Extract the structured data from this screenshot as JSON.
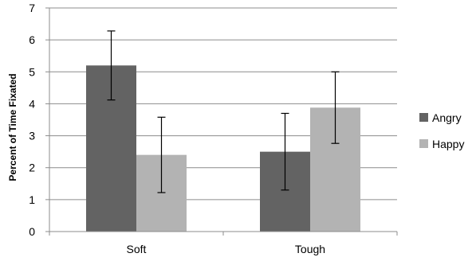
{
  "chart_data": {
    "type": "bar",
    "categories": [
      "Soft",
      "Tough"
    ],
    "series": [
      {
        "name": "Angry",
        "values": [
          5.2,
          2.5
        ],
        "error": [
          1.08,
          1.2
        ],
        "color": "#636363"
      },
      {
        "name": "Happy",
        "values": [
          2.4,
          3.88
        ],
        "error": [
          1.18,
          1.12
        ],
        "color": "#b3b3b3"
      }
    ],
    "ylabel": "Percent of Time Fixated",
    "xlabel": "",
    "ylim": [
      0,
      7
    ],
    "yticks": [
      "0",
      "1",
      "2",
      "3",
      "4",
      "5",
      "6",
      "7"
    ],
    "grid": true,
    "legend_position": "right"
  }
}
